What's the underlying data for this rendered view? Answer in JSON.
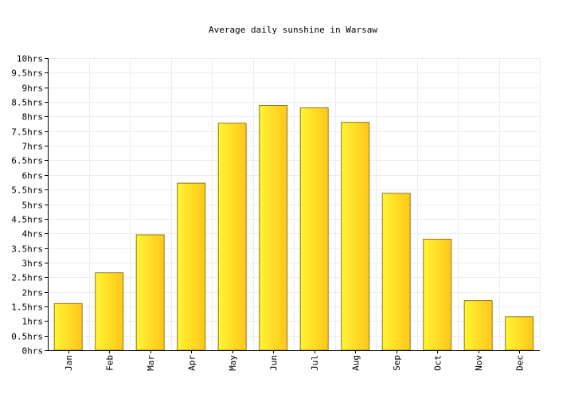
{
  "chart_data": {
    "type": "bar",
    "title": "Average daily sunshine in Warsaw",
    "xlabel": "",
    "ylabel": "",
    "categories": [
      "Jan",
      "Feb",
      "Mar",
      "Apr",
      "May",
      "Jun",
      "Jul",
      "Aug",
      "Sep",
      "Oct",
      "Nov",
      "Dec"
    ],
    "values": [
      1.6,
      2.65,
      3.95,
      5.72,
      7.77,
      8.38,
      8.3,
      7.8,
      5.37,
      3.8,
      1.7,
      1.15
    ],
    "ylim": [
      0,
      10
    ],
    "yticks": [
      "0hrs",
      "0.5hrs",
      "1hrs",
      "1.5hrs",
      "2hrs",
      "2.5hrs",
      "3hrs",
      "3.5hrs",
      "4hrs",
      "4.5hrs",
      "5hrs",
      "5.5hrs",
      "6hrs",
      "6.5hrs",
      "7hrs",
      "7.5hrs",
      "8hrs",
      "8.5hrs",
      "9hrs",
      "9.5hrs",
      "10hrs"
    ],
    "grid": true,
    "colors": {
      "bar_light": "#fff533",
      "bar_dark": "#ffc61a",
      "bar_border": "#8a7a1a",
      "grid": "#ececec",
      "axis": "#000000"
    }
  }
}
